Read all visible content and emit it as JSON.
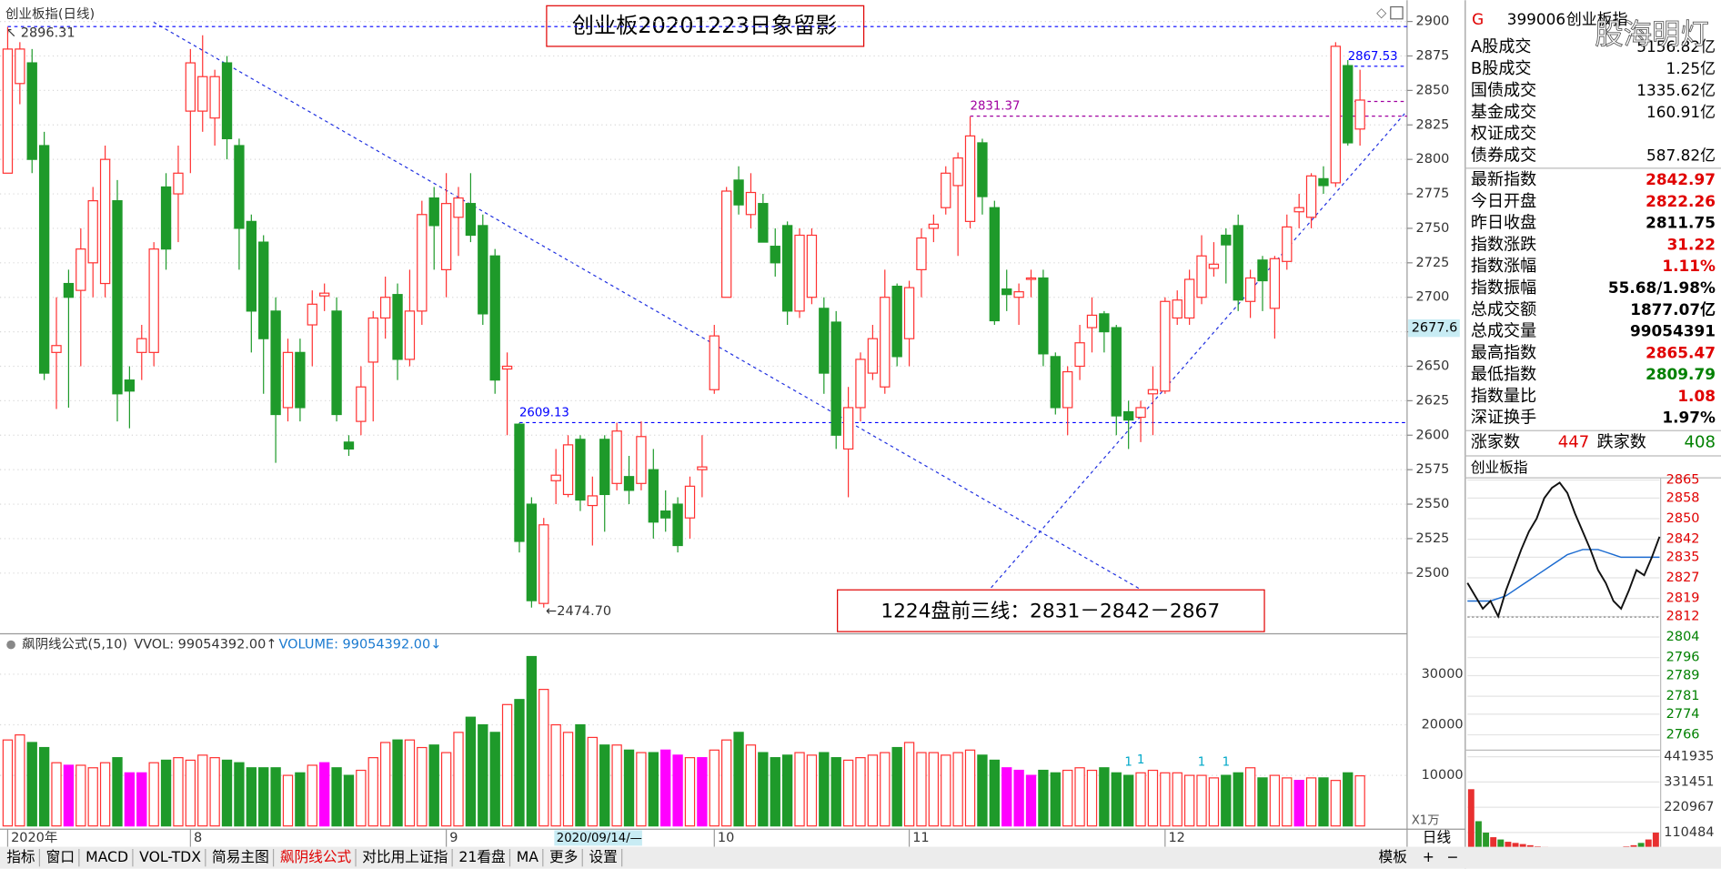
{
  "header": {
    "title": "创业板指(日线)"
  },
  "chart_data": {
    "type": "candlestick",
    "title": "创业板20201223日象留影",
    "note": "1224盘前三线：2831－2842－2867",
    "up_color": "#ff3232",
    "down_color": "#1e9a2a",
    "highlight_color": "#ff00ff",
    "ylim": [
      2456,
      2913
    ],
    "yticks": [
      2500,
      2525,
      2550,
      2575,
      2600,
      2625,
      2650,
      2675,
      2700,
      2725,
      2750,
      2775,
      2800,
      2825,
      2850,
      2875,
      2900
    ],
    "cursor_price": 2677.6,
    "cursor_date": "2020/09/14/—",
    "categories": [
      "2020年",
      null,
      null,
      null,
      null,
      null,
      null,
      null,
      null,
      null,
      null,
      null,
      null,
      null,
      null,
      "8",
      null,
      null,
      null,
      null,
      null,
      null,
      null,
      null,
      null,
      null,
      null,
      null,
      null,
      null,
      null,
      null,
      null,
      null,
      null,
      null,
      "9",
      null,
      null,
      null,
      null,
      null,
      null,
      null,
      null,
      null,
      null,
      null,
      null,
      null,
      null,
      null,
      null,
      null,
      null,
      null,
      null,
      null,
      "10",
      null,
      null,
      null,
      null,
      null,
      null,
      null,
      null,
      null,
      null,
      null,
      null,
      null,
      null,
      null,
      "11",
      null,
      null,
      null,
      null,
      null,
      null,
      null,
      null,
      null,
      null,
      null,
      null,
      null,
      null,
      null,
      null,
      null,
      null,
      null,
      null,
      "12",
      null,
      null,
      null,
      null,
      null,
      null,
      null,
      null,
      null,
      null,
      null,
      null,
      null,
      null,
      null,
      null
    ],
    "ohlc": [
      [
        2790,
        2896,
        2790,
        2880
      ],
      [
        2855,
        2885,
        2840,
        2880
      ],
      [
        2870,
        2880,
        2790,
        2800
      ],
      [
        2810,
        2820,
        2640,
        2645
      ],
      [
        2660,
        2700,
        2619,
        2665
      ],
      [
        2710,
        2720,
        2620,
        2700
      ],
      [
        2705,
        2750,
        2650,
        2735
      ],
      [
        2725,
        2780,
        2700,
        2770
      ],
      [
        2710,
        2810,
        2700,
        2800
      ],
      [
        2770,
        2785,
        2610,
        2630
      ],
      [
        2640,
        2650,
        2605,
        2632
      ],
      [
        2660,
        2680,
        2640,
        2670
      ],
      [
        2660,
        2740,
        2650,
        2735
      ],
      [
        2780,
        2790,
        2720,
        2735
      ],
      [
        2775,
        2810,
        2740,
        2790
      ],
      [
        2835,
        2880,
        2790,
        2870
      ],
      [
        2835,
        2890,
        2820,
        2860
      ],
      [
        2830,
        2865,
        2810,
        2860
      ],
      [
        2870,
        2875,
        2800,
        2815
      ],
      [
        2810,
        2815,
        2720,
        2750
      ],
      [
        2755,
        2760,
        2660,
        2690
      ],
      [
        2740,
        2745,
        2630,
        2670
      ],
      [
        2690,
        2700,
        2580,
        2615
      ],
      [
        2620,
        2670,
        2610,
        2660
      ],
      [
        2660,
        2670,
        2610,
        2620
      ],
      [
        2680,
        2705,
        2650,
        2695
      ],
      [
        2701,
        2710,
        2690,
        2703
      ],
      [
        2690,
        2700,
        2610,
        2615
      ],
      [
        2595,
        2600,
        2585,
        2590
      ],
      [
        2610,
        2650,
        2600,
        2635
      ],
      [
        2653,
        2690,
        2610,
        2685
      ],
      [
        2685,
        2715,
        2670,
        2700
      ],
      [
        2702,
        2710,
        2640,
        2655
      ],
      [
        2655,
        2720,
        2650,
        2690
      ],
      [
        2690,
        2770,
        2680,
        2760
      ],
      [
        2772,
        2780,
        2720,
        2752
      ],
      [
        2720,
        2790,
        2700,
        2768
      ],
      [
        2758,
        2780,
        2730,
        2772
      ],
      [
        2768,
        2790,
        2740,
        2745
      ],
      [
        2752,
        2760,
        2680,
        2688
      ],
      [
        2730,
        2735,
        2630,
        2640
      ],
      [
        2648,
        2660,
        2600,
        2650
      ],
      [
        2608,
        2609,
        2515,
        2523
      ],
      [
        2550,
        2555,
        2475,
        2480
      ],
      [
        2478,
        2540,
        2475,
        2535
      ],
      [
        2567,
        2590,
        2550,
        2571
      ],
      [
        2557,
        2600,
        2555,
        2593
      ],
      [
        2597,
        2600,
        2545,
        2553
      ],
      [
        2549,
        2570,
        2520,
        2556
      ],
      [
        2597,
        2600,
        2530,
        2557
      ],
      [
        2565,
        2609,
        2560,
        2603
      ],
      [
        2570,
        2585,
        2550,
        2560
      ],
      [
        2565,
        2610,
        2560,
        2599
      ],
      [
        2575,
        2590,
        2525,
        2537
      ],
      [
        2545,
        2560,
        2530,
        2540
      ],
      [
        2550,
        2555,
        2515,
        2520
      ],
      [
        2540,
        2570,
        2525,
        2563
      ],
      [
        2575,
        2600,
        2555,
        2577
      ],
      [
        2633,
        2680,
        2630,
        2672
      ],
      [
        2700,
        2780,
        2700,
        2777
      ],
      [
        2785,
        2795,
        2760,
        2767
      ],
      [
        2760,
        2790,
        2750,
        2776
      ],
      [
        2768,
        2775,
        2740,
        2740
      ],
      [
        2737,
        2750,
        2715,
        2725
      ],
      [
        2752,
        2755,
        2680,
        2690
      ],
      [
        2690,
        2750,
        2685,
        2745
      ],
      [
        2700,
        2750,
        2695,
        2745
      ],
      [
        2692,
        2700,
        2630,
        2645
      ],
      [
        2682,
        2690,
        2590,
        2600
      ],
      [
        2590,
        2635,
        2555,
        2620
      ],
      [
        2620,
        2660,
        2610,
        2655
      ],
      [
        2645,
        2680,
        2640,
        2670
      ],
      [
        2635,
        2720,
        2630,
        2700
      ],
      [
        2708,
        2710,
        2650,
        2657
      ],
      [
        2670,
        2712,
        2650,
        2707
      ],
      [
        2720,
        2750,
        2700,
        2743
      ],
      [
        2750,
        2760,
        2740,
        2753
      ],
      [
        2765,
        2795,
        2760,
        2790
      ],
      [
        2781,
        2805,
        2730,
        2801
      ],
      [
        2755,
        2831,
        2750,
        2817
      ],
      [
        2812,
        2815,
        2760,
        2773
      ],
      [
        2765,
        2770,
        2680,
        2683
      ],
      [
        2706,
        2720,
        2690,
        2702
      ],
      [
        2700,
        2710,
        2680,
        2704
      ],
      [
        2713,
        2720,
        2700,
        2714
      ],
      [
        2714,
        2720,
        2650,
        2659
      ],
      [
        2657,
        2660,
        2615,
        2620
      ],
      [
        2620,
        2650,
        2600,
        2646
      ],
      [
        2650,
        2680,
        2640,
        2667
      ],
      [
        2678,
        2700,
        2660,
        2687
      ],
      [
        2688,
        2690,
        2660,
        2675
      ],
      [
        2678,
        2680,
        2600,
        2614
      ],
      [
        2617,
        2625,
        2590,
        2611
      ],
      [
        2613,
        2625,
        2595,
        2620
      ],
      [
        2630,
        2650,
        2600,
        2633
      ],
      [
        2632,
        2700,
        2630,
        2697
      ],
      [
        2685,
        2705,
        2680,
        2698
      ],
      [
        2685,
        2720,
        2680,
        2713
      ],
      [
        2700,
        2745,
        2695,
        2730
      ],
      [
        2721,
        2740,
        2715,
        2724
      ],
      [
        2745,
        2750,
        2710,
        2738
      ],
      [
        2752,
        2760,
        2690,
        2698
      ],
      [
        2697,
        2720,
        2685,
        2714
      ],
      [
        2727,
        2730,
        2690,
        2712
      ],
      [
        2692,
        2730,
        2670,
        2728
      ],
      [
        2726,
        2760,
        2720,
        2751
      ],
      [
        2762,
        2775,
        2750,
        2765
      ],
      [
        2758,
        2790,
        2750,
        2788
      ],
      [
        2786,
        2795,
        2775,
        2781
      ],
      [
        2783,
        2885,
        2780,
        2882
      ],
      [
        2868,
        2872,
        2810,
        2812
      ],
      [
        2822,
        2865,
        2810,
        2843
      ]
    ],
    "levels": [
      {
        "value": 2896.31,
        "label": "↖ 2896.31",
        "color": "#0000ff",
        "index": 0
      },
      {
        "value": 2867.53,
        "color": "#0000ff",
        "index": 110
      },
      {
        "value": 2842,
        "color": "#a000a0",
        "index": 110
      },
      {
        "value": 2831.37,
        "color": "#a000a0",
        "index": 79
      },
      {
        "value": 2609.13,
        "color": "#0000ff",
        "index": 42
      },
      {
        "value": 2474.7,
        "label": "←2474.70",
        "color": "#333333",
        "index": 44,
        "line": false
      }
    ],
    "volume_title": "飙阴线公式(5,10)",
    "vvol": "VVOL: 99054392.00↑",
    "vol_text": "VOLUME: 99054392.00↓",
    "volume_unit": "X1万",
    "volume_ylim": [
      0,
      38000
    ],
    "volume_yticks": [
      10000,
      20000,
      30000
    ],
    "volume": [
      17000,
      18000,
      16500,
      15500,
      12500,
      12000,
      12000,
      11500,
      12500,
      13500,
      10500,
      10500,
      12500,
      13000,
      13500,
      13000,
      14000,
      13500,
      13000,
      12500,
      11500,
      11500,
      11500,
      10000,
      10500,
      12000,
      12500,
      11500,
      10000,
      11000,
      13500,
      16500,
      17000,
      17000,
      15500,
      16000,
      14500,
      18500,
      21500,
      20000,
      18500,
      24000,
      25000,
      33500,
      27000,
      20000,
      18500,
      20000,
      17500,
      16000,
      16000,
      15000,
      14500,
      14500,
      15000,
      14000,
      13500,
      13500,
      15000,
      17000,
      18500,
      16000,
      14500,
      13500,
      14000,
      14500,
      14000,
      14500,
      13500,
      13000,
      13500,
      14000,
      14500,
      15500,
      16500,
      14500,
      14500,
      14000,
      14500,
      15000,
      14000,
      13000,
      11500,
      11000,
      10000,
      11000,
      10500,
      11000,
      11500,
      11000,
      11500,
      10500,
      10000,
      10500,
      11000,
      10500,
      10500,
      10000,
      10000,
      9500,
      10000,
      10500,
      11500,
      9500,
      10000,
      9500,
      9000,
      9500,
      9500,
      9000,
      10500,
      9905
    ],
    "volume_highlight": [
      5,
      10,
      11,
      26,
      54,
      55,
      57,
      82,
      83,
      84,
      106
    ],
    "volume_marks": {
      "label": "1",
      "color": "#00a8c8",
      "indices": [
        92,
        93,
        98,
        100
      ]
    }
  },
  "quote": {
    "flag": "G",
    "code": "399006",
    "name": "创业板指",
    "watermark": "股海明灯",
    "rows_top": [
      {
        "label": "A股成交",
        "value": "5156.82亿"
      },
      {
        "label": "B股成交",
        "value": "1.25亿"
      },
      {
        "label": "国债成交",
        "value": "1335.62亿"
      },
      {
        "label": "基金成交",
        "value": "160.91亿"
      },
      {
        "label": "权证成交"
      },
      {
        "label": "债券成交",
        "value": "587.82亿"
      }
    ],
    "rows": [
      {
        "label": "最新指数",
        "value": "2842.97",
        "color": "#e00000"
      },
      {
        "label": "今日开盘",
        "value": "2822.26",
        "color": "#e00000"
      },
      {
        "label": "昨日收盘",
        "value": "2811.75",
        "color": "#000000"
      },
      {
        "label": "指数涨跌",
        "value": "31.22",
        "color": "#e00000"
      },
      {
        "label": "指数涨幅",
        "value": "1.11%",
        "color": "#e00000"
      },
      {
        "label": "指数振幅",
        "value": "55.68/1.98%",
        "color": "#000000"
      },
      {
        "label": "总成交额",
        "value": "1877.07亿",
        "color": "#000000"
      },
      {
        "label": "总成交量",
        "value": "99054391",
        "color": "#000000"
      },
      {
        "label": "最高指数",
        "value": "2865.47",
        "color": "#e00000"
      },
      {
        "label": "最低指数",
        "value": "2809.79",
        "color": "#008000"
      },
      {
        "label": "指数量比",
        "value": "1.08",
        "color": "#e00000"
      },
      {
        "label": "深证换手",
        "value": "1.97%",
        "color": "#000000"
      }
    ],
    "up_label": "涨家数",
    "up_count": "447",
    "down_label": "跌家数",
    "down_count": "408"
  },
  "mini": {
    "type": "line",
    "title": "创业板指",
    "prev_close": 2811.75,
    "ylim": [
      2766,
      2865
    ],
    "yticks": [
      2766,
      2774,
      2781,
      2789,
      2796,
      2804,
      2812,
      2819,
      2827,
      2835,
      2842,
      2850,
      2858,
      2865
    ],
    "price": [
      2825,
      2820,
      2815,
      2818,
      2812,
      2822,
      2830,
      2838,
      2845,
      2850,
      2858,
      2862,
      2864,
      2860,
      2852,
      2845,
      2838,
      2830,
      2825,
      2818,
      2815,
      2822,
      2830,
      2828,
      2835,
      2843
    ],
    "avg": [
      2818,
      2818,
      2818,
      2818,
      2819,
      2820,
      2822,
      2824,
      2826,
      2828,
      2830,
      2832,
      2834,
      2836,
      2837,
      2838,
      2838,
      2838,
      2837,
      2836,
      2835,
      2835,
      2835,
      2835,
      2835,
      2835
    ],
    "volume_ylim": [
      0,
      441935
    ],
    "volume_yticks": [
      110484,
      220967,
      331451,
      441935
    ],
    "volume": [
      300000,
      160000,
      110000,
      90000,
      80000,
      70000,
      65000,
      60000,
      55000,
      50000,
      48000,
      45000,
      42000,
      40000,
      45000,
      42000,
      40000,
      38000,
      40000,
      42000,
      45000,
      50000,
      55000,
      65000,
      80000,
      110000
    ]
  },
  "toolbar": {
    "tabs": [
      {
        "label": "指标"
      },
      {
        "label": "窗口"
      },
      {
        "label": "MACD"
      },
      {
        "label": "VOL-TDX"
      },
      {
        "label": "简易主图"
      },
      {
        "label": "飙阴线公式",
        "active": true
      },
      {
        "label": "对比用上证指"
      },
      {
        "label": "21看盘"
      },
      {
        "label": "MA"
      },
      {
        "label": "更多"
      },
      {
        "label": "设置"
      }
    ],
    "period": "日线",
    "template": "模板",
    "plus": "+",
    "minus": "−"
  }
}
